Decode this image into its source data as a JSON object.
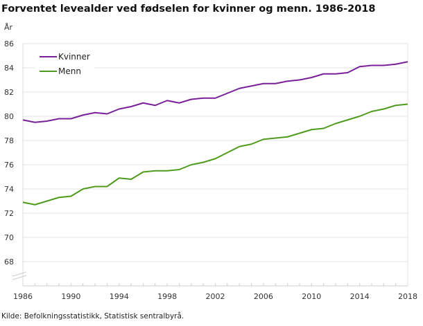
{
  "chart_data": {
    "type": "line",
    "title": "Forventet levealder ved fødselen for kvinner og menn. 1986-2018",
    "ylabel": "År",
    "xlabel": "",
    "source": "Kilde: Befolkningsstatistikk, Statistisk sentralbyrå.",
    "xlim": [
      1986,
      2018
    ],
    "ylim": [
      66,
      86
    ],
    "y_axis_break": true,
    "grid": true,
    "legend_placement": "top-left",
    "x_ticks": [
      "1986",
      "1990",
      "1994",
      "1998",
      "2002",
      "2006",
      "2010",
      "2014",
      "2018"
    ],
    "y_ticks": [
      "68",
      "70",
      "72",
      "74",
      "76",
      "78",
      "80",
      "82",
      "84",
      "86"
    ],
    "x": [
      1986,
      1987,
      1988,
      1989,
      1990,
      1991,
      1992,
      1993,
      1994,
      1995,
      1996,
      1997,
      1998,
      1999,
      2000,
      2001,
      2002,
      2003,
      2004,
      2005,
      2006,
      2007,
      2008,
      2009,
      2010,
      2011,
      2012,
      2013,
      2014,
      2015,
      2016,
      2017,
      2018
    ],
    "series": [
      {
        "name": "Kvinner",
        "color": "#7a1f9a",
        "values": [
          79.7,
          79.5,
          79.6,
          79.8,
          79.8,
          80.1,
          80.3,
          80.2,
          80.6,
          80.8,
          81.1,
          80.9,
          81.3,
          81.1,
          81.4,
          81.5,
          81.5,
          81.9,
          82.3,
          82.5,
          82.7,
          82.7,
          82.9,
          83.0,
          83.2,
          83.5,
          83.5,
          83.6,
          84.1,
          84.2,
          84.2,
          84.3,
          84.5
        ]
      },
      {
        "name": "Menn",
        "color": "#4f9a1c",
        "values": [
          72.9,
          72.7,
          73.0,
          73.3,
          73.4,
          74.0,
          74.2,
          74.2,
          74.9,
          74.8,
          75.4,
          75.5,
          75.5,
          75.6,
          76.0,
          76.2,
          76.5,
          77.0,
          77.5,
          77.7,
          78.1,
          78.2,
          78.3,
          78.6,
          78.9,
          79.0,
          79.4,
          79.7,
          80.0,
          80.4,
          80.6,
          80.9,
          81.0
        ]
      }
    ]
  }
}
